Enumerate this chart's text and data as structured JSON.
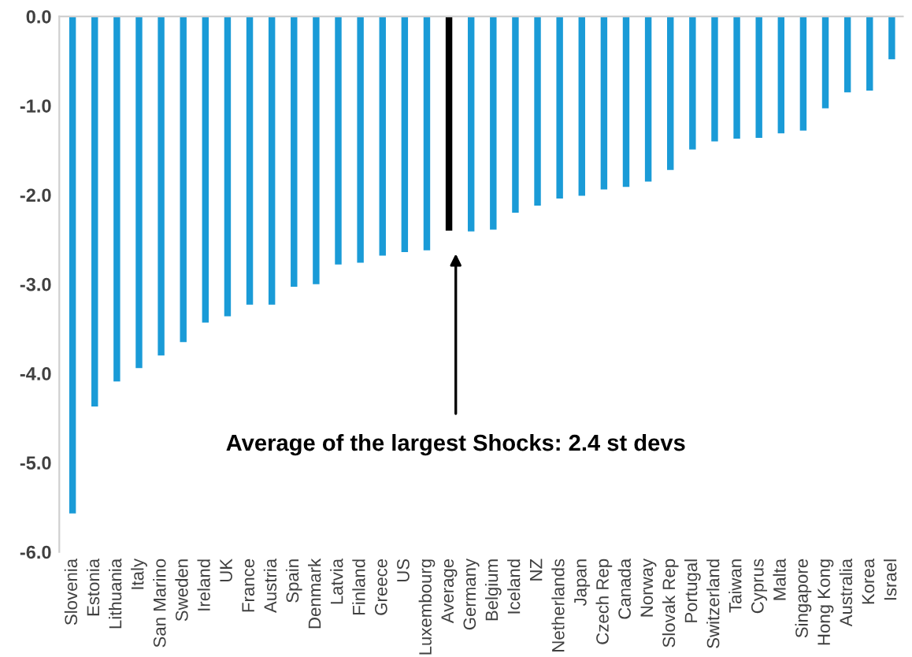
{
  "chart_data": {
    "type": "bar",
    "categories": [
      "Slovenia",
      "Estonia",
      "Lithuania",
      "Italy",
      "San Marino",
      "Sweden",
      "Ireland",
      "UK",
      "France",
      "Austria",
      "Spain",
      "Denmark",
      "Latvia",
      "Finland",
      "Greece",
      "US",
      "Luxembourg",
      "Average",
      "Germany",
      "Belgium",
      "Iceland",
      "NZ",
      "Netherlands",
      "Japan",
      "Czech Rep",
      "Canada",
      "Norway",
      "Slovak Rep",
      "Portugal",
      "Switzerland",
      "Taiwan",
      "Cyprus",
      "Malta",
      "Singapore",
      "Hong Kong",
      "Australia",
      "Korea",
      "Israel"
    ],
    "values": [
      -5.57,
      -4.37,
      -4.09,
      -3.94,
      -3.8,
      -3.65,
      -3.43,
      -3.36,
      -3.23,
      -3.23,
      -3.03,
      -3.0,
      -2.78,
      -2.76,
      -2.68,
      -2.64,
      -2.62,
      -2.4,
      -2.41,
      -2.39,
      -2.2,
      -2.12,
      -2.04,
      -2.01,
      -1.94,
      -1.91,
      -1.85,
      -1.72,
      -1.49,
      -1.4,
      -1.37,
      -1.36,
      -1.31,
      -1.28,
      -1.03,
      -0.85,
      -0.83,
      -0.48
    ],
    "colors": [
      "#1a9bd7",
      "#1a9bd7",
      "#1a9bd7",
      "#1a9bd7",
      "#1a9bd7",
      "#1a9bd7",
      "#1a9bd7",
      "#1a9bd7",
      "#1a9bd7",
      "#1a9bd7",
      "#1a9bd7",
      "#1a9bd7",
      "#1a9bd7",
      "#1a9bd7",
      "#1a9bd7",
      "#1a9bd7",
      "#1a9bd7",
      "#000000",
      "#1a9bd7",
      "#1a9bd7",
      "#1a9bd7",
      "#1a9bd7",
      "#1a9bd7",
      "#1a9bd7",
      "#1a9bd7",
      "#1a9bd7",
      "#1a9bd7",
      "#1a9bd7",
      "#1a9bd7",
      "#1a9bd7",
      "#1a9bd7",
      "#1a9bd7",
      "#1a9bd7",
      "#1a9bd7",
      "#1a9bd7",
      "#1a9bd7",
      "#1a9bd7",
      "#1a9bd7"
    ],
    "ylim": [
      -6.0,
      0.0
    ],
    "yticks": [
      {
        "value": 0.0,
        "label": "0.0"
      },
      {
        "value": -1.0,
        "label": "-1.0"
      },
      {
        "value": -2.0,
        "label": "-2.0"
      },
      {
        "value": -3.0,
        "label": "-3.0"
      },
      {
        "value": -4.0,
        "label": "-4.0"
      },
      {
        "value": -5.0,
        "label": "-5.0"
      },
      {
        "value": -6.0,
        "label": "-6.0"
      }
    ],
    "annotations": [
      "Average of the largest Shocks: 2.4 st devs"
    ],
    "grid": false,
    "legend": false
  }
}
